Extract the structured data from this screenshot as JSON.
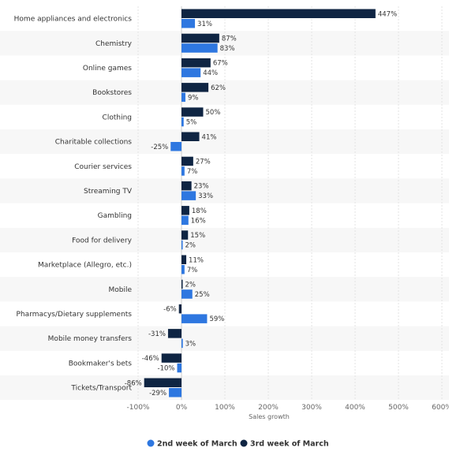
{
  "chart_data": {
    "type": "bar",
    "orientation": "horizontal",
    "categories": [
      "Home appliances and electronics",
      "Chemistry",
      "Online games",
      "Bookstores",
      "Clothing",
      "Charitable collections",
      "Courier services",
      "Streaming TV",
      "Gambling",
      "Food for delivery",
      "Marketplace (Allegro, etc.)",
      "Mobile",
      "Pharmacys/Dietary supplements",
      "Mobile money transfers",
      "Bookmaker's bets",
      "Tickets/Transport"
    ],
    "series": [
      {
        "name": "3rd week of March",
        "color": "#0f2543",
        "values": [
          447,
          87,
          67,
          62,
          50,
          41,
          27,
          23,
          18,
          15,
          11,
          2,
          -6,
          -31,
          -46,
          -86
        ],
        "labels": [
          "447%",
          "87%",
          "67%",
          "62%",
          "50%",
          "41%",
          "27%",
          "23%",
          "18%",
          "15%",
          "11%",
          "2%",
          "-6%",
          "-31%",
          "-46%",
          "-86%"
        ]
      },
      {
        "name": "2nd week of March",
        "color": "#2e77e0",
        "values": [
          31,
          83,
          44,
          9,
          5,
          -25,
          7,
          33,
          16,
          2,
          7,
          25,
          59,
          3,
          -10,
          -29
        ],
        "labels": [
          "31%",
          "83%",
          "44%",
          "9%",
          "5%",
          "-25%",
          "7%",
          "33%",
          "16%",
          "2%",
          "7%",
          "25%",
          "59%",
          "3%",
          "-10%",
          "-29%"
        ]
      }
    ],
    "xlabel": "Sales growth",
    "xlim": [
      -100,
      600
    ],
    "xticks": [
      -100,
      0,
      100,
      200,
      300,
      400,
      500,
      600
    ],
    "xtick_labels": [
      "-100%",
      "0%",
      "100%",
      "200%",
      "300%",
      "400%",
      "500%",
      "600%"
    ],
    "grid": true,
    "legend": {
      "placement": "bottom",
      "items": [
        "2nd week of March",
        "3rd week of March"
      ]
    }
  }
}
